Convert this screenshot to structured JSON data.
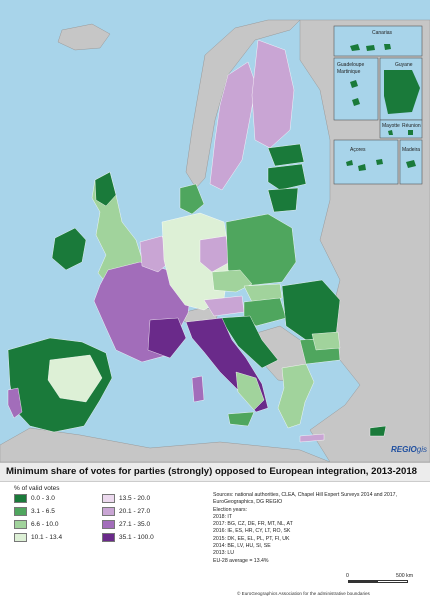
{
  "map": {
    "title": "Minimum share of votes for parties (strongly) opposed to European integration, 2013-2018",
    "logo": {
      "main": "REGIO",
      "suffix": "gis"
    },
    "insets": {
      "canarias": "Canarias",
      "guadeloupe": "Guadeloupe",
      "martinique": "Martinique",
      "guyane": "Guyane",
      "mayotte": "Mayotte",
      "reunion": "Réunion",
      "acores": "Açores",
      "madeira": "Madeira"
    }
  },
  "legend": {
    "title": "% of valid votes",
    "classes": [
      {
        "label": "0.0 - 3.0",
        "color": "#1a7a3a"
      },
      {
        "label": "3.1 - 6.5",
        "color": "#4fa65e"
      },
      {
        "label": "6.6 - 10.0",
        "color": "#a1d39c"
      },
      {
        "label": "10.1 - 13.4",
        "color": "#ddf0d6"
      },
      {
        "label": "13.5 - 20.0",
        "color": "#ecd9ee"
      },
      {
        "label": "20.1 - 27.0",
        "color": "#c9a5d4"
      },
      {
        "label": "27.1 - 35.0",
        "color": "#a26dba"
      },
      {
        "label": "35.1 - 100.0",
        "color": "#6a2a8a"
      }
    ]
  },
  "sources": {
    "line1": "Sources: national authorities, CLEA, Chapel Hill Expert Surveys 2014 and 2017,",
    "line2": "EuroGeographics, DG REGIO",
    "line3": "Election years:",
    "line4": "2018: IT",
    "line5": "2017: BG, CZ, DE, FR, MT, NL, AT",
    "line6": "2016: IE, ES, HR, CY, LT, RO, SK",
    "line7": "2015: DK, EE, EL, PL, PT, FI, UK",
    "line8": "2014: BE, LV, HU, SI, SE",
    "line9": "2013: LU",
    "line10": "EU-28 average = 13.4%"
  },
  "scale": {
    "start": "0",
    "end": "500 km"
  },
  "copyright": "© EuroGeographics Association for the administrative boundaries"
}
